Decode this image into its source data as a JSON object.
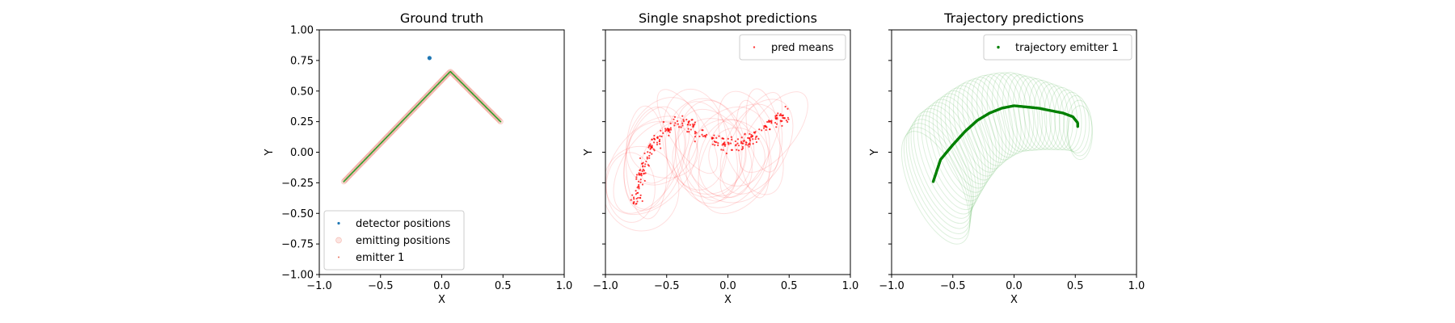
{
  "chart_data": [
    {
      "type": "scatter",
      "title": "Ground truth",
      "xlabel": "X",
      "ylabel": "Y",
      "xlim": [
        -1.0,
        1.0
      ],
      "ylim": [
        -1.0,
        1.0
      ],
      "xticks": [
        "−1.0",
        "−0.5",
        "0.0",
        "0.5",
        "1.0"
      ],
      "yticks": [
        "−1.00",
        "−0.75",
        "−0.50",
        "−0.25",
        "0.00",
        "0.25",
        "0.50",
        "0.75",
        "1.00"
      ],
      "legend_position": "lower-left",
      "series": [
        {
          "name": "detector positions",
          "color": "#1f77b4",
          "points": [
            [
              -0.1,
              0.77
            ]
          ]
        },
        {
          "name": "emitting positions",
          "color": "#f4a69a",
          "path": [
            [
              -0.8,
              -0.24
            ],
            [
              0.07,
              0.66
            ],
            [
              0.48,
              0.25
            ]
          ]
        },
        {
          "name": "emitter 1",
          "color": "#2ca02c",
          "path": [
            [
              -0.8,
              -0.24
            ],
            [
              0.07,
              0.66
            ],
            [
              0.48,
              0.25
            ]
          ]
        }
      ]
    },
    {
      "type": "scatter",
      "title": "Single snapshot predictions",
      "xlabel": "X",
      "ylabel": "Y",
      "xlim": [
        -1.0,
        1.0
      ],
      "ylim": [
        -1.0,
        1.0
      ],
      "xticks": [
        "−1.0",
        "−0.5",
        "0.0",
        "0.5",
        "1.0"
      ],
      "legend_position": "top-right",
      "series": [
        {
          "name": "pred means",
          "color": "#ff0000"
        }
      ],
      "mean_trend": [
        [
          -0.75,
          -0.38
        ],
        [
          -0.7,
          -0.12
        ],
        [
          -0.62,
          0.05
        ],
        [
          -0.5,
          0.18
        ],
        [
          -0.4,
          0.24
        ],
        [
          -0.3,
          0.22
        ],
        [
          -0.2,
          0.12
        ],
        [
          -0.1,
          0.1
        ],
        [
          0.0,
          0.04
        ],
        [
          0.1,
          0.07
        ],
        [
          0.2,
          0.12
        ],
        [
          0.3,
          0.2
        ],
        [
          0.4,
          0.27
        ],
        [
          0.5,
          0.3
        ]
      ],
      "covariance_ellipse_count": 28
    },
    {
      "type": "scatter",
      "title": "Trajectory predictions",
      "xlabel": "X",
      "ylabel": "Y",
      "xlim": [
        -1.0,
        1.0
      ],
      "ylim": [
        -1.0,
        1.0
      ],
      "xticks": [
        "−1.0",
        "−0.5",
        "0.0",
        "0.5",
        "1.0"
      ],
      "legend_position": "top-right",
      "series": [
        {
          "name": "trajectory emitter 1",
          "color": "#008000",
          "path": [
            [
              -0.66,
              -0.24
            ],
            [
              -0.6,
              -0.06
            ],
            [
              -0.5,
              0.06
            ],
            [
              -0.4,
              0.17
            ],
            [
              -0.3,
              0.26
            ],
            [
              -0.2,
              0.32
            ],
            [
              -0.1,
              0.36
            ],
            [
              0.0,
              0.38
            ],
            [
              0.1,
              0.37
            ],
            [
              0.2,
              0.36
            ],
            [
              0.3,
              0.34
            ],
            [
              0.4,
              0.32
            ],
            [
              0.48,
              0.29
            ],
            [
              0.52,
              0.24
            ],
            [
              0.52,
              0.21
            ]
          ]
        }
      ],
      "covariance_ellipse_count": 40
    }
  ]
}
